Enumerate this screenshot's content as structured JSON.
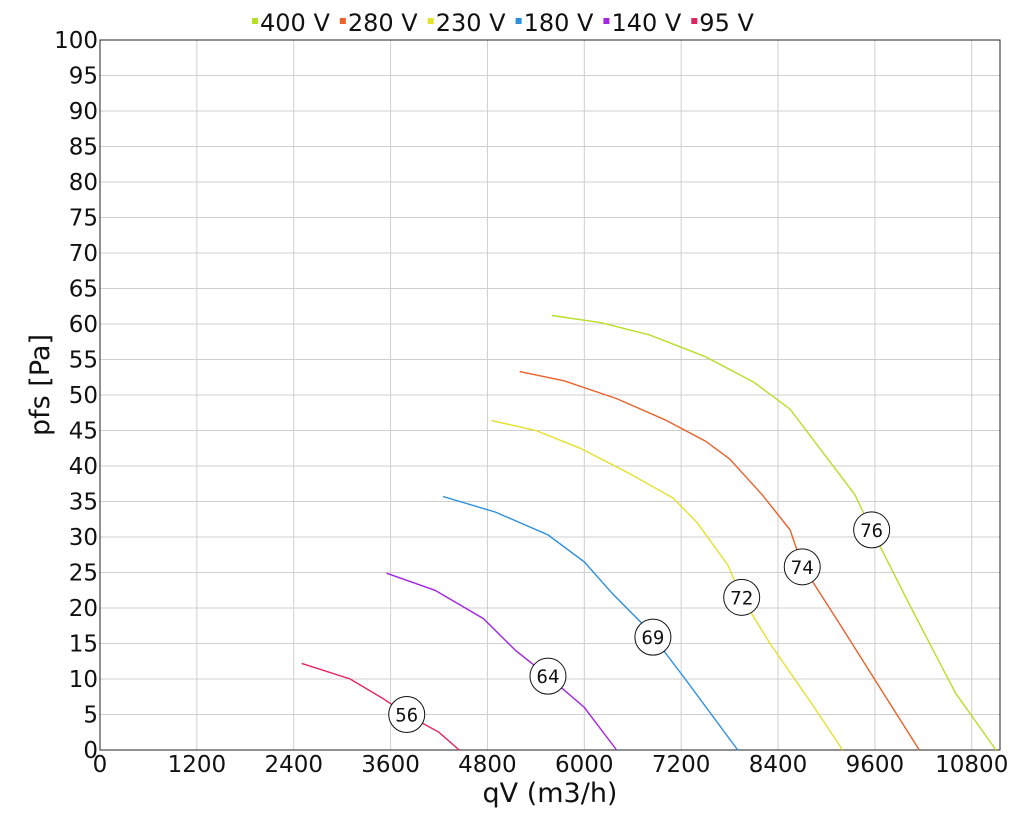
{
  "chart_data": {
    "type": "line",
    "xlabel": "qV (m3/h)",
    "ylabel": "pfs [Pa]",
    "xlim": [
      0,
      11150
    ],
    "ylim": [
      0,
      100
    ],
    "x_ticks": [
      "0",
      "1200",
      "2400",
      "3600",
      "4800",
      "6000",
      "7200",
      "8400",
      "9600",
      "10800"
    ],
    "y_ticks": [
      "0",
      "5",
      "10",
      "15",
      "20",
      "25",
      "30",
      "35",
      "40",
      "45",
      "50",
      "55",
      "60",
      "65",
      "70",
      "75",
      "80",
      "85",
      "90",
      "95",
      "100"
    ],
    "grid": true,
    "legend_position": "top",
    "series": [
      {
        "name": "400 V",
        "color": "#b8de2a",
        "points": [
          [
            5600,
            61.2
          ],
          [
            6200,
            60.2
          ],
          [
            6800,
            58.5
          ],
          [
            7500,
            55.4
          ],
          [
            8100,
            51.8
          ],
          [
            8550,
            48.0
          ],
          [
            8950,
            42.0
          ],
          [
            9350,
            36.0
          ],
          [
            9560,
            31.0
          ],
          [
            10050,
            20.0
          ],
          [
            10600,
            8.0
          ],
          [
            11100,
            0
          ]
        ]
      },
      {
        "name": "280 V",
        "color": "#e8622a",
        "points": [
          [
            5200,
            53.3
          ],
          [
            5750,
            52.0
          ],
          [
            6400,
            49.5
          ],
          [
            7000,
            46.5
          ],
          [
            7500,
            43.5
          ],
          [
            7800,
            41.0
          ],
          [
            8200,
            36.0
          ],
          [
            8550,
            31.0
          ],
          [
            8700,
            26.0
          ],
          [
            9150,
            18.0
          ],
          [
            9650,
            9.0
          ],
          [
            10150,
            0
          ]
        ]
      },
      {
        "name": "230 V",
        "color": "#e3e12c",
        "points": [
          [
            4850,
            46.4
          ],
          [
            5400,
            45.0
          ],
          [
            5950,
            42.5
          ],
          [
            6550,
            39.0
          ],
          [
            7100,
            35.5
          ],
          [
            7400,
            32.0
          ],
          [
            7780,
            26.0
          ],
          [
            7950,
            21.5
          ],
          [
            8300,
            15.0
          ],
          [
            8850,
            6.0
          ],
          [
            9200,
            0
          ]
        ]
      },
      {
        "name": "180 V",
        "color": "#2b8fde",
        "points": [
          [
            4250,
            35.7
          ],
          [
            4900,
            33.5
          ],
          [
            5550,
            30.3
          ],
          [
            6000,
            26.5
          ],
          [
            6350,
            22.0
          ],
          [
            6700,
            18.0
          ],
          [
            6850,
            16.0
          ],
          [
            7250,
            10.0
          ],
          [
            7900,
            0
          ]
        ]
      },
      {
        "name": "140 V",
        "color": "#a326e0",
        "points": [
          [
            3550,
            24.9
          ],
          [
            4150,
            22.5
          ],
          [
            4750,
            18.5
          ],
          [
            5150,
            14.0
          ],
          [
            5550,
            10.4
          ],
          [
            6000,
            6.0
          ],
          [
            6400,
            0
          ]
        ]
      },
      {
        "name": "95 V",
        "color": "#e0245e",
        "points": [
          [
            2500,
            12.2
          ],
          [
            3100,
            10.0
          ],
          [
            3500,
            7.3
          ],
          [
            3800,
            5.0
          ],
          [
            4200,
            2.5
          ],
          [
            4450,
            0
          ]
        ]
      }
    ],
    "markers": [
      {
        "label": "76",
        "x": 9560,
        "y": 31.0
      },
      {
        "label": "74",
        "x": 8700,
        "y": 25.8
      },
      {
        "label": "72",
        "x": 7950,
        "y": 21.5
      },
      {
        "label": "69",
        "x": 6850,
        "y": 15.9
      },
      {
        "label": "64",
        "x": 5550,
        "y": 10.4
      },
      {
        "label": "56",
        "x": 3800,
        "y": 5.0
      }
    ]
  }
}
